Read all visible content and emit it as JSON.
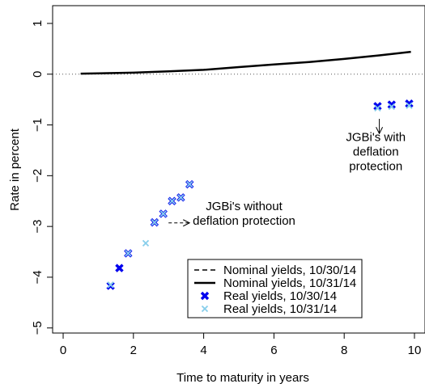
{
  "chart_data": {
    "type": "scatter",
    "title": "",
    "xlabel": "Time to maturity in years",
    "ylabel": "Rate in percent",
    "xlim": [
      -0.3,
      10.3
    ],
    "ylim": [
      -5.1,
      1.35
    ],
    "x_ticks": [
      0,
      2,
      4,
      6,
      8,
      10
    ],
    "x_tick_labels": [
      "0",
      "2",
      "4",
      "6",
      "8",
      "10"
    ],
    "y_ticks": [
      -5,
      -4,
      -3,
      -2,
      -1,
      0,
      1
    ],
    "y_tick_labels": [
      "−5",
      "−4",
      "−3",
      "−2",
      "−1",
      "0",
      "1"
    ],
    "grid": false,
    "zero_reference_line": true,
    "legend_position": "bottom-right",
    "series": [
      {
        "name": "Nominal yields, 10/30/14",
        "kind": "line",
        "line_style": "dashed",
        "color": "#000000",
        "x": [
          0.5,
          1,
          2,
          3,
          4,
          5,
          6,
          7,
          8,
          9,
          9.9
        ],
        "y": [
          0.01,
          0.015,
          0.03,
          0.055,
          0.085,
          0.14,
          0.19,
          0.24,
          0.3,
          0.37,
          0.44
        ]
      },
      {
        "name": "Nominal yields, 10/31/14",
        "kind": "line",
        "line_style": "solid",
        "color": "#000000",
        "x": [
          0.5,
          1,
          2,
          3,
          4,
          5,
          6,
          7,
          8,
          9,
          9.9
        ],
        "y": [
          0.01,
          0.015,
          0.03,
          0.055,
          0.085,
          0.14,
          0.19,
          0.24,
          0.3,
          0.37,
          0.44
        ]
      },
      {
        "name": "Real yields, 10/30/14",
        "kind": "points",
        "marker": "x-bold",
        "color": "#0000ee",
        "x": [
          1.35,
          1.6,
          1.85,
          2.6,
          2.85,
          3.1,
          3.35,
          3.6,
          8.95,
          9.35,
          9.85
        ],
        "y": [
          -4.17,
          -3.82,
          -3.53,
          -2.92,
          -2.75,
          -2.5,
          -2.43,
          -2.17,
          -0.63,
          -0.6,
          -0.58
        ]
      },
      {
        "name": "Real yields, 10/31/14",
        "kind": "points",
        "marker": "x",
        "color": "#87ceeb",
        "x": [
          1.35,
          1.85,
          2.35,
          2.6,
          2.85,
          3.1,
          3.35,
          3.6,
          8.95,
          9.35,
          9.85
        ],
        "y": [
          -4.15,
          -3.53,
          -3.33,
          -2.92,
          -2.75,
          -2.5,
          -2.43,
          -2.17,
          -0.67,
          -0.64,
          -0.62
        ]
      }
    ],
    "annotations": [
      {
        "name": "without-deflation-protection",
        "lines": [
          "JGBi's without",
          "deflation protection"
        ],
        "arrow_from": [
          3.0,
          -2.93
        ],
        "arrow_to": [
          3.6,
          -2.93
        ],
        "arrow_style": "dashed"
      },
      {
        "name": "with-deflation-protection",
        "lines": [
          "JGBi's with",
          "deflation",
          "protection"
        ],
        "arrow_from": [
          9.0,
          -0.88
        ],
        "arrow_to": [
          9.0,
          -1.17
        ],
        "arrow_style": "solid"
      }
    ]
  }
}
